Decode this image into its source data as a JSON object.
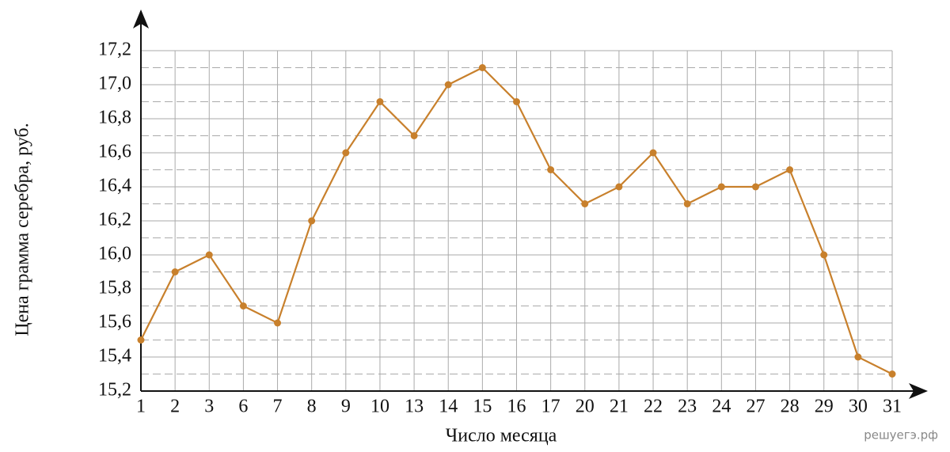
{
  "chart_data": {
    "type": "line",
    "ylabel": "Цена грамма серебра, руб.",
    "xlabel": "Число месяца",
    "watermark": "решуегэ.рф",
    "categories": [
      "1",
      "2",
      "3",
      "6",
      "7",
      "8",
      "9",
      "10",
      "13",
      "14",
      "15",
      "16",
      "17",
      "20",
      "21",
      "22",
      "23",
      "24",
      "27",
      "28",
      "29",
      "30",
      "31"
    ],
    "series": [
      {
        "color": "#c8802c",
        "values": [
          15.5,
          15.9,
          16.0,
          15.7,
          15.6,
          16.2,
          16.6,
          16.9,
          16.7,
          17.0,
          17.1,
          16.9,
          16.5,
          16.3,
          16.4,
          16.6,
          16.3,
          16.4,
          16.4,
          16.5,
          16.0,
          15.4,
          15.3
        ]
      }
    ],
    "ylim": [
      15.2,
      17.2
    ],
    "yticks": [
      {
        "value": 15.2,
        "label": "15,2"
      },
      {
        "value": 15.4,
        "label": "15,4"
      },
      {
        "value": 15.6,
        "label": "15,6"
      },
      {
        "value": 15.8,
        "label": "15,8"
      },
      {
        "value": 16.0,
        "label": "16,0"
      },
      {
        "value": 16.2,
        "label": "16,2"
      },
      {
        "value": 16.4,
        "label": "16,4"
      },
      {
        "value": 16.6,
        "label": "16,6"
      },
      {
        "value": 16.8,
        "label": "16,8"
      },
      {
        "value": 17.0,
        "label": "17,0"
      },
      {
        "value": 17.2,
        "label": "17,2"
      }
    ],
    "grid": true,
    "minor_grid": true
  }
}
